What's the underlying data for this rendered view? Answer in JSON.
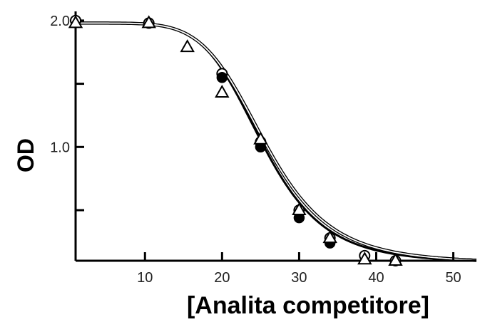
{
  "chart_data": {
    "type": "scatter",
    "title": "",
    "xlabel": "[Analita competitore]",
    "ylabel": "OD",
    "xlim": [
      1,
      53
    ],
    "ylim": [
      0.1,
      2.05
    ],
    "x_ticks": [
      10,
      20,
      30,
      40,
      50
    ],
    "x_tick_labels": [
      "10",
      "20",
      "30",
      "40",
      "50"
    ],
    "y_ticks": [
      1.0,
      1.5,
      2.0
    ],
    "y_minor_ticks": [
      0.5
    ],
    "y_tick_labels": [
      "1.0",
      "",
      "2.0"
    ],
    "grid": false,
    "legend": "none",
    "series": [
      {
        "marker": "circle-open",
        "x": [
          1,
          10.5,
          20,
          25,
          30,
          34,
          38.5,
          42.5
        ],
        "y": [
          2.0,
          1.98,
          1.58,
          1.04,
          0.5,
          0.28,
          0.14,
          0.1
        ]
      },
      {
        "marker": "circle-filled",
        "x": [
          20,
          25,
          30,
          34
        ],
        "y": [
          1.55,
          1.0,
          0.44,
          0.24
        ]
      },
      {
        "marker": "triangle-open",
        "x": [
          1,
          10.5,
          15.5,
          20,
          25,
          30,
          34,
          38.5,
          42.5
        ],
        "y": [
          1.98,
          1.98,
          1.79,
          1.43,
          1.06,
          0.5,
          0.28,
          0.11,
          0.1
        ]
      }
    ],
    "fit_curves": [
      {
        "bottom": 0.08,
        "top": 1.98,
        "ec50": 25.2,
        "hill": 6.2,
        "style": "thick-dark"
      },
      {
        "bottom": 0.08,
        "top": 1.98,
        "ec50": 25.6,
        "hill": 6.0,
        "style": "thin-outline"
      }
    ],
    "colors": {
      "axis": "#000000",
      "markers": "#000000",
      "background": "#ffffff"
    }
  }
}
